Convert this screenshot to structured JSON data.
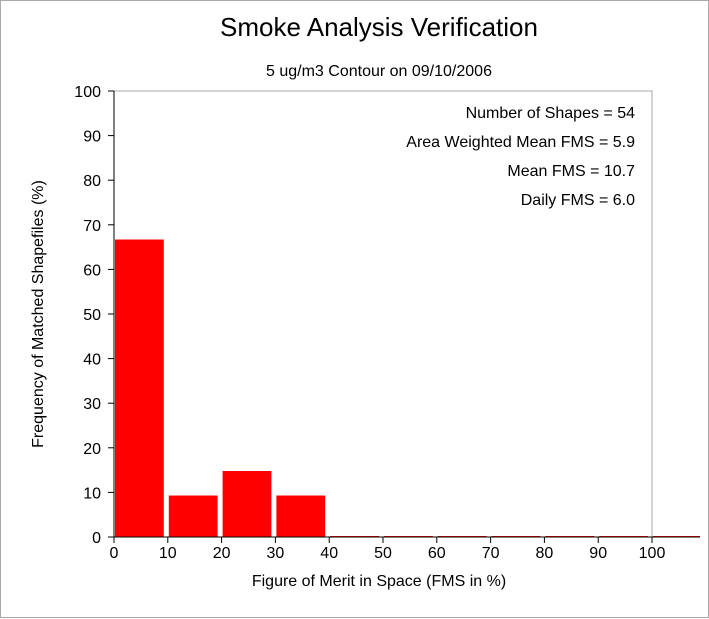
{
  "chart_data": {
    "type": "bar",
    "title": "Smoke Analysis Verification",
    "subtitle": "5 ug/m3 Contour on 09/10/2006",
    "xlabel": "Figure of Merit in Space (FMS in %)",
    "ylabel": "Frequency of Matched Shapefiles (%)",
    "xlim": [
      0,
      100
    ],
    "ylim": [
      0,
      100
    ],
    "xticks": [
      0,
      10,
      20,
      30,
      40,
      50,
      60,
      70,
      80,
      90,
      100
    ],
    "yticks": [
      0,
      10,
      20,
      30,
      40,
      50,
      60,
      70,
      80,
      90,
      100
    ],
    "bins": [
      {
        "from": 0,
        "to": 10,
        "value": 66.7
      },
      {
        "from": 10,
        "to": 20,
        "value": 9.3
      },
      {
        "from": 20,
        "to": 30,
        "value": 14.8
      },
      {
        "from": 30,
        "to": 40,
        "value": 9.3
      },
      {
        "from": 40,
        "to": 50,
        "value": 0
      },
      {
        "from": 50,
        "to": 60,
        "value": 0
      },
      {
        "from": 60,
        "to": 70,
        "value": 0
      },
      {
        "from": 70,
        "to": 80,
        "value": 0
      },
      {
        "from": 80,
        "to": 90,
        "value": 0
      },
      {
        "from": 90,
        "to": 100,
        "value": 0
      },
      {
        "from": 100,
        "to": 110,
        "value": 0
      }
    ],
    "bar_color": "#ff0000",
    "grid": false,
    "stats": [
      "Number of Shapes = 54",
      "Area Weighted Mean FMS = 5.9",
      "Mean FMS = 10.7",
      "Daily FMS = 6.0"
    ]
  }
}
